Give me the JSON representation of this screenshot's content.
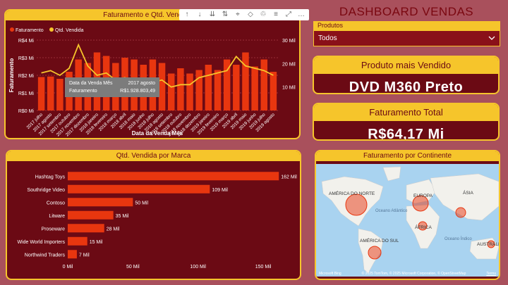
{
  "dashboard": {
    "title": "DASHBOARD VENDAS"
  },
  "combo_chart": {
    "header": "Faturamento e Qtd. Vendida po",
    "legend": [
      {
        "label": "Faturamento",
        "color": "#e8360f"
      },
      {
        "label": "Qtd. Vendida",
        "color": "#f6c52b"
      }
    ],
    "y_left_label": "Faturamento",
    "x_label": "Data da Venda Mês",
    "tooltip": {
      "rows": [
        {
          "key": "Data da Venda Mês",
          "value": "2017 agosto"
        },
        {
          "key": "Faturamento",
          "value": "R$1.928.803,49"
        }
      ]
    }
  },
  "toolbar": {
    "icons": [
      "↑",
      "↓",
      "⇊",
      "⇅",
      "⌖",
      "◇",
      "♲",
      "≡",
      "⤢",
      "…"
    ]
  },
  "slicer": {
    "label": "Produtos",
    "value": "Todos"
  },
  "card_product": {
    "header": "Produto mais Vendido",
    "value": "DVD M360 Preto"
  },
  "card_revenue": {
    "header": "Faturamento Total",
    "value": "R$64,17 Mi"
  },
  "brand_chart": {
    "header": "Qtd. Vendida por Marca"
  },
  "map_panel": {
    "header": "Faturamento por Continente",
    "labels": {
      "na": "AMÉRICA DO NORTE",
      "eu": "EUROPA",
      "as": "ÁSIA",
      "af": "ÁFRICA",
      "sa": "AMÉRICA DO SUL",
      "au": "AUSTRÁLI",
      "ocean_atl": "Oceano Atlântico",
      "ocean_ind": "Oceano Índico"
    },
    "footer_logo": "Microsoft Bing",
    "footer_credit": "© 2025 TomTom, © 2025 Microsoft Corporation, © OpenStreetMap",
    "footer_terms": "Terms"
  },
  "chart_data": [
    {
      "type": "bar",
      "title": "Faturamento e Qtd. Vendida po",
      "xlabel": "Data da Venda Mês",
      "ylabel": "Faturamento",
      "ylim": [
        0,
        4
      ],
      "y2lim": [
        0,
        30
      ],
      "y_ticks": [
        "R$0 Mi",
        "R$1 Mi",
        "R$2 Mi",
        "R$3 Mi",
        "R$4 Mi"
      ],
      "y2_ticks": [
        "10 Mil",
        "20 Mil",
        "30 Mil"
      ],
      "categories": [
        "2017 julho",
        "2017 agosto",
        "2017 setembro",
        "2017 outubro",
        "2017 novembro",
        "2017 dezembro",
        "2018 janeiro",
        "2018 fevereiro",
        "2018 março",
        "2018 abril",
        "2018 maio",
        "2018 junho",
        "2018 julho",
        "2018 agosto",
        "2018 setembro",
        "2018 outubro",
        "2018 novembro",
        "2018 dezembro",
        "2019 janeiro",
        "2019 fevereiro",
        "2019 março",
        "2019 abril",
        "2019 maio",
        "2019 junho",
        "2019 julho",
        "2019 agosto"
      ],
      "tick_labels": [
        "2017 julho",
        "2017 agosto",
        "2017 setembro",
        "2017 outubro",
        "2017 novembro",
        "2017 dezembro",
        "2018 janeiro",
        "2018 fevereiro",
        "2018 março",
        "2018 abril",
        "2018 maio",
        "2018 junho",
        "2018 julho",
        "2018 agosto",
        "2018 setembro",
        "2018 outubro",
        "2018 novembro",
        "2018 dezembro",
        "2019 janeiro",
        "2019 fevereiro",
        "2019 março",
        "2019 abril",
        "2019 maio",
        "2019 junho",
        "2019 julho",
        "2019 agosto"
      ],
      "series": [
        {
          "name": "Faturamento",
          "axis": "left",
          "values": [
            1.9,
            1.93,
            1.8,
            2.2,
            2.9,
            2.7,
            3.3,
            3.1,
            2.7,
            3.0,
            2.9,
            2.6,
            2.9,
            2.7,
            2.1,
            2.4,
            2.1,
            2.3,
            2.6,
            2.3,
            2.9,
            2.6,
            3.3,
            2.5,
            2.9,
            2.2
          ]
        },
        {
          "name": "Qtd. Vendida",
          "axis": "right",
          "values": [
            16,
            17,
            15,
            18,
            28,
            19,
            15,
            16,
            13,
            14,
            12,
            11,
            12,
            13,
            10,
            11,
            11,
            14,
            15,
            16,
            17,
            23,
            19,
            18,
            17,
            15
          ]
        }
      ]
    },
    {
      "type": "bar",
      "orientation": "horizontal",
      "title": "Qtd. Vendida por Marca",
      "categories": [
        "Hashtag Toys",
        "Southridge Video",
        "Contoso",
        "Litware",
        "Proseware",
        "Wide World Importers",
        "Northwind Traders"
      ],
      "values": [
        162,
        109,
        50,
        35,
        28,
        15,
        7
      ],
      "value_labels": [
        "162 Mil",
        "109 Mil",
        "50 Mil",
        "35 Mil",
        "28 Mil",
        "15 Mil",
        "7 Mil"
      ],
      "xlim": [
        0,
        170
      ],
      "x_ticks": [
        {
          "value": 0,
          "label": "0 Mil"
        },
        {
          "value": 50,
          "label": "50 Mil"
        },
        {
          "value": 100,
          "label": "100 Mil"
        },
        {
          "value": 150,
          "label": "150 Mil"
        }
      ],
      "color": "#e8360f"
    },
    {
      "type": "scatter",
      "title": "Faturamento por Continente",
      "series": [
        {
          "name": "AMÉRICA DO NORTE",
          "size_rank": 1
        },
        {
          "name": "EUROPA",
          "size_rank": 2
        },
        {
          "name": "AMÉRICA DO SUL",
          "size_rank": 3
        },
        {
          "name": "ÁSIA",
          "size_rank": 4
        },
        {
          "name": "ÁFRICA",
          "size_rank": 5
        },
        {
          "name": "AUSTRÁLI",
          "size_rank": 6
        }
      ]
    }
  ]
}
